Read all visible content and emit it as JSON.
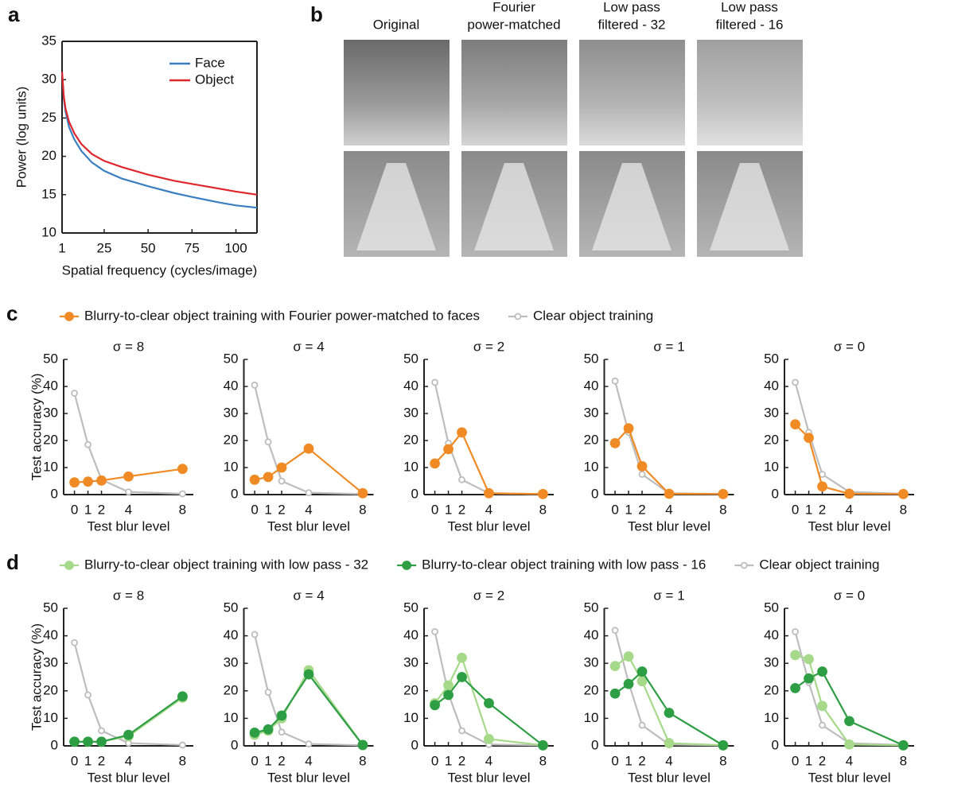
{
  "chart_data": [
    {
      "type": "line",
      "panel_label": "a",
      "xlabel": "Spatial frequency (cycles/image)",
      "ylabel": "Power (log units)",
      "x": [
        1,
        2,
        3,
        5,
        8,
        12,
        18,
        25,
        35,
        50,
        65,
        75,
        90,
        100,
        112
      ],
      "xlim": [
        1,
        112
      ],
      "ylim": [
        10,
        35
      ],
      "xticks": [
        1,
        25,
        50,
        75,
        100
      ],
      "yticks": [
        10,
        15,
        20,
        25,
        30,
        35
      ],
      "legend": "upper right",
      "frame": true,
      "series": [
        {
          "name": "Face",
          "color": "#3a7fc1",
          "values": [
            31,
            27.5,
            25.8,
            23.8,
            22.2,
            20.7,
            19.2,
            18.1,
            17.1,
            16.1,
            15.2,
            14.7,
            14.0,
            13.6,
            13.3
          ]
        },
        {
          "name": "Object",
          "color": "#e0262d",
          "values": [
            31,
            27.8,
            26.2,
            24.5,
            23.0,
            21.6,
            20.3,
            19.4,
            18.6,
            17.6,
            16.8,
            16.4,
            15.8,
            15.4,
            15.0
          ]
        }
      ]
    },
    {
      "type": "line",
      "panel_label": "c",
      "title": "σ = 8",
      "xlabel": "Test blur level",
      "ylabel": "Test accuracy (%)",
      "legend": [
        {
          "name": "Blurry-to-clear object training with Fourier power-matched to faces",
          "color": "#f08a24",
          "marker": "filled"
        },
        {
          "name": "Clear object training",
          "color": "#bdbdbd",
          "marker": "open"
        }
      ],
      "x": [
        0,
        1,
        2,
        4,
        8
      ],
      "xlim": [
        -0.8,
        8.8
      ],
      "ylim": [
        0,
        50
      ],
      "xticks": [
        0,
        1,
        2,
        4,
        8
      ],
      "yticks": [
        0,
        10,
        20,
        30,
        40,
        50
      ],
      "series": [
        {
          "color": "#bdbdbd",
          "marker": "open",
          "values": [
            37.5,
            18.5,
            5.5,
            1,
            0.3
          ]
        },
        {
          "color": "#f08a24",
          "marker": "filled",
          "values": [
            4.5,
            4.8,
            5.2,
            6.7,
            9.5
          ]
        }
      ]
    },
    {
      "type": "line",
      "title": "σ = 4",
      "xlabel": "Test blur level",
      "x": [
        0,
        1,
        2,
        4,
        8
      ],
      "xlim": [
        -0.8,
        8.8
      ],
      "ylim": [
        0,
        50
      ],
      "xticks": [
        0,
        1,
        2,
        4,
        8
      ],
      "yticks": [
        0,
        10,
        20,
        30,
        40,
        50
      ],
      "series": [
        {
          "color": "#bdbdbd",
          "marker": "open",
          "values": [
            40.5,
            19.5,
            5,
            0.7,
            0.2
          ]
        },
        {
          "color": "#f08a24",
          "marker": "filled",
          "values": [
            5.5,
            6.5,
            10,
            17,
            0.5
          ]
        }
      ]
    },
    {
      "type": "line",
      "title": "σ = 2",
      "xlabel": "Test blur level",
      "x": [
        0,
        1,
        2,
        4,
        8
      ],
      "xlim": [
        -0.8,
        8.8
      ],
      "ylim": [
        0,
        50
      ],
      "xticks": [
        0,
        1,
        2,
        4,
        8
      ],
      "yticks": [
        0,
        10,
        20,
        30,
        40,
        50
      ],
      "series": [
        {
          "color": "#bdbdbd",
          "marker": "open",
          "values": [
            41.5,
            19,
            5.5,
            0.5,
            0.2
          ]
        },
        {
          "color": "#f08a24",
          "marker": "filled",
          "values": [
            11.5,
            16.8,
            23,
            0.5,
            0.2
          ]
        }
      ]
    },
    {
      "type": "line",
      "title": "σ = 1",
      "xlabel": "Test blur level",
      "x": [
        0,
        1,
        2,
        4,
        8
      ],
      "xlim": [
        -0.8,
        8.8
      ],
      "ylim": [
        0,
        50
      ],
      "xticks": [
        0,
        1,
        2,
        4,
        8
      ],
      "yticks": [
        0,
        10,
        20,
        30,
        40,
        50
      ],
      "series": [
        {
          "color": "#bdbdbd",
          "marker": "open",
          "values": [
            42,
            23,
            7.5,
            0.5,
            0.2
          ]
        },
        {
          "color": "#f08a24",
          "marker": "filled",
          "values": [
            19,
            24.5,
            10.5,
            0.3,
            0.2
          ]
        }
      ]
    },
    {
      "type": "line",
      "title": "σ = 0",
      "xlabel": "Test blur level",
      "x": [
        0,
        1,
        2,
        4,
        8
      ],
      "xlim": [
        -0.8,
        8.8
      ],
      "ylim": [
        0,
        50
      ],
      "xticks": [
        0,
        1,
        2,
        4,
        8
      ],
      "yticks": [
        0,
        10,
        20,
        30,
        40,
        50
      ],
      "series": [
        {
          "color": "#bdbdbd",
          "marker": "open",
          "values": [
            41.5,
            23,
            7.5,
            1,
            0.3
          ]
        },
        {
          "color": "#f08a24",
          "marker": "filled",
          "values": [
            26,
            21,
            3,
            0.3,
            0.2
          ]
        }
      ]
    },
    {
      "type": "line",
      "panel_label": "d",
      "title": "σ = 8",
      "xlabel": "Test blur level",
      "ylabel": "Test accuracy (%)",
      "legend": [
        {
          "name": "Blurry-to-clear object training with low pass - 32",
          "color": "#a6d98a",
          "marker": "filled"
        },
        {
          "name": "Blurry-to-clear object training with low pass - 16",
          "color": "#2e9e44",
          "marker": "filled"
        },
        {
          "name": "Clear object training",
          "color": "#bdbdbd",
          "marker": "open"
        }
      ],
      "x": [
        0,
        1,
        2,
        4,
        8
      ],
      "xlim": [
        -0.8,
        8.8
      ],
      "ylim": [
        0,
        50
      ],
      "xticks": [
        0,
        1,
        2,
        4,
        8
      ],
      "yticks": [
        0,
        10,
        20,
        30,
        40,
        50
      ],
      "series": [
        {
          "color": "#bdbdbd",
          "marker": "open",
          "values": [
            37.5,
            18.5,
            5.5,
            1,
            0.3
          ]
        },
        {
          "color": "#a6d98a",
          "marker": "filled",
          "values": [
            1.5,
            1.5,
            1.5,
            3.5,
            17.5
          ]
        },
        {
          "color": "#2e9e44",
          "marker": "filled",
          "values": [
            1.5,
            1.5,
            1.5,
            4,
            18
          ]
        }
      ]
    },
    {
      "type": "line",
      "title": "σ = 4",
      "xlabel": "Test blur level",
      "x": [
        0,
        1,
        2,
        4,
        8
      ],
      "xlim": [
        -0.8,
        8.8
      ],
      "ylim": [
        0,
        50
      ],
      "xticks": [
        0,
        1,
        2,
        4,
        8
      ],
      "yticks": [
        0,
        10,
        20,
        30,
        40,
        50
      ],
      "series": [
        {
          "color": "#bdbdbd",
          "marker": "open",
          "values": [
            40.5,
            19.5,
            5,
            0.7,
            0.2
          ]
        },
        {
          "color": "#a6d98a",
          "marker": "filled",
          "values": [
            4,
            5.5,
            10,
            27.5,
            0.3
          ]
        },
        {
          "color": "#2e9e44",
          "marker": "filled",
          "values": [
            4.8,
            6,
            11,
            26,
            0.3
          ]
        }
      ]
    },
    {
      "type": "line",
      "title": "σ = 2",
      "xlabel": "Test blur level",
      "x": [
        0,
        1,
        2,
        4,
        8
      ],
      "xlim": [
        -0.8,
        8.8
      ],
      "ylim": [
        0,
        50
      ],
      "xticks": [
        0,
        1,
        2,
        4,
        8
      ],
      "yticks": [
        0,
        10,
        20,
        30,
        40,
        50
      ],
      "series": [
        {
          "color": "#bdbdbd",
          "marker": "open",
          "values": [
            41.5,
            19,
            5.5,
            0.5,
            0.2
          ]
        },
        {
          "color": "#a6d98a",
          "marker": "filled",
          "values": [
            15.5,
            22,
            32,
            2.5,
            0.2
          ]
        },
        {
          "color": "#2e9e44",
          "marker": "filled",
          "values": [
            14.8,
            18.5,
            25,
            15.5,
            0.2
          ]
        }
      ]
    },
    {
      "type": "line",
      "title": "σ = 1",
      "xlabel": "Test blur level",
      "x": [
        0,
        1,
        2,
        4,
        8
      ],
      "xlim": [
        -0.8,
        8.8
      ],
      "ylim": [
        0,
        50
      ],
      "xticks": [
        0,
        1,
        2,
        4,
        8
      ],
      "yticks": [
        0,
        10,
        20,
        30,
        40,
        50
      ],
      "series": [
        {
          "color": "#bdbdbd",
          "marker": "open",
          "values": [
            42,
            23,
            7.5,
            0.5,
            0.2
          ]
        },
        {
          "color": "#a6d98a",
          "marker": "filled",
          "values": [
            29,
            32.5,
            23.5,
            1,
            0.2
          ]
        },
        {
          "color": "#2e9e44",
          "marker": "filled",
          "values": [
            19,
            22.5,
            27,
            12,
            0.2
          ]
        }
      ]
    },
    {
      "type": "line",
      "title": "σ = 0",
      "xlabel": "Test blur level",
      "x": [
        0,
        1,
        2,
        4,
        8
      ],
      "xlim": [
        -0.8,
        8.8
      ],
      "ylim": [
        0,
        50
      ],
      "xticks": [
        0,
        1,
        2,
        4,
        8
      ],
      "yticks": [
        0,
        10,
        20,
        30,
        40,
        50
      ],
      "series": [
        {
          "color": "#bdbdbd",
          "marker": "open",
          "values": [
            41.5,
            23,
            7.5,
            1,
            0.3
          ]
        },
        {
          "color": "#a6d98a",
          "marker": "filled",
          "values": [
            33,
            31.5,
            14.5,
            0.5,
            0.2
          ]
        },
        {
          "color": "#2e9e44",
          "marker": "filled",
          "values": [
            21,
            24.5,
            27,
            9,
            0.2
          ]
        }
      ]
    }
  ],
  "figure_b": {
    "panel_label": "b",
    "columns": [
      [
        "Original"
      ],
      [
        "Fourier",
        "power-matched"
      ],
      [
        "Low pass",
        "filtered - 32"
      ],
      [
        "Low pass",
        "filtered - 16"
      ]
    ]
  }
}
